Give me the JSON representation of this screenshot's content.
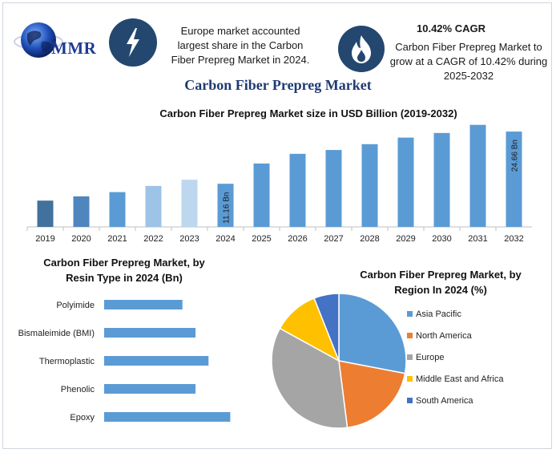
{
  "brand": {
    "logo_text": "MMR"
  },
  "header": {
    "left_info": "Europe market accounted largest share in the Carbon Fiber Prepreg Market in 2024.",
    "cagr_title": "10.42% CAGR",
    "cagr_text": "Carbon Fiber Prepreg Market to grow at a CAGR of 10.42% during 2025-2032"
  },
  "main_title": "Carbon Fiber Prepreg Market",
  "colors": {
    "primary_bar": "#5b9bd5",
    "header_icon": "#24476f",
    "title": "#1f3a73"
  },
  "chart_data": [
    {
      "type": "bar",
      "title": "Carbon Fiber Prepreg Market size in USD Billion (2019-2032)",
      "categories": [
        "2019",
        "2020",
        "2021",
        "2022",
        "2023",
        "2024",
        "2025",
        "2026",
        "2027",
        "2028",
        "2029",
        "2030",
        "2031",
        "2032"
      ],
      "values": [
        6.8,
        7.9,
        9.0,
        10.6,
        12.2,
        11.16,
        16.4,
        18.9,
        19.9,
        21.4,
        23.1,
        24.3,
        26.4,
        24.66
      ],
      "bar_colors": [
        "#41719c",
        "#4f86be",
        "#5b9bd5",
        "#9dc3e6",
        "#bdd7ee",
        "#5b9bd5",
        "#5b9bd5",
        "#5b9bd5",
        "#5b9bd5",
        "#5b9bd5",
        "#5b9bd5",
        "#5b9bd5",
        "#5b9bd5",
        "#5b9bd5"
      ],
      "data_labels": {
        "2024": "11.16 Bn",
        "2032": "24.66 Bn"
      },
      "xlabel": "",
      "ylabel": "",
      "ylim": [
        0,
        28
      ],
      "grid": false
    },
    {
      "type": "bar",
      "orientation": "horizontal",
      "title": "Carbon Fiber Prepreg Market, by Resin Type in 2024 (Bn)",
      "categories": [
        "Polyimide",
        "Bismaleimide (BMI)",
        "Thermoplastic",
        "Phenolic",
        "Epoxy"
      ],
      "values": [
        1.8,
        2.1,
        2.4,
        2.1,
        2.9
      ],
      "color": "#5b9bd5",
      "xlim": [
        0,
        3.5
      ],
      "grid": false
    },
    {
      "type": "pie",
      "title": "Carbon Fiber Prepreg Market, by Region In 2024 (%)",
      "labels": [
        "Asia Pacific",
        "North America",
        "Europe",
        "Middle East and Africa",
        "South America"
      ],
      "values": [
        28,
        20,
        35,
        11,
        6
      ],
      "colors": [
        "#5b9bd5",
        "#ed7d31",
        "#a5a5a5",
        "#ffc000",
        "#4472c4"
      ],
      "legend_position": "right"
    }
  ]
}
